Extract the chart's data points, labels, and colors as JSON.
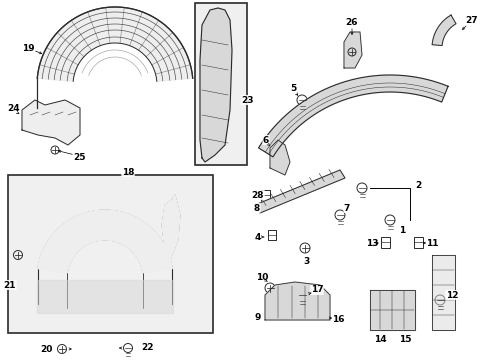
{
  "bg_color": "#ffffff",
  "line_color": "#2a2a2a",
  "gray_fill": "#d8d8d8",
  "light_fill": "#eeeeee",
  "box_fill": "#e8e8e8",
  "fig_width": 4.89,
  "fig_height": 3.6,
  "dpi": 100
}
